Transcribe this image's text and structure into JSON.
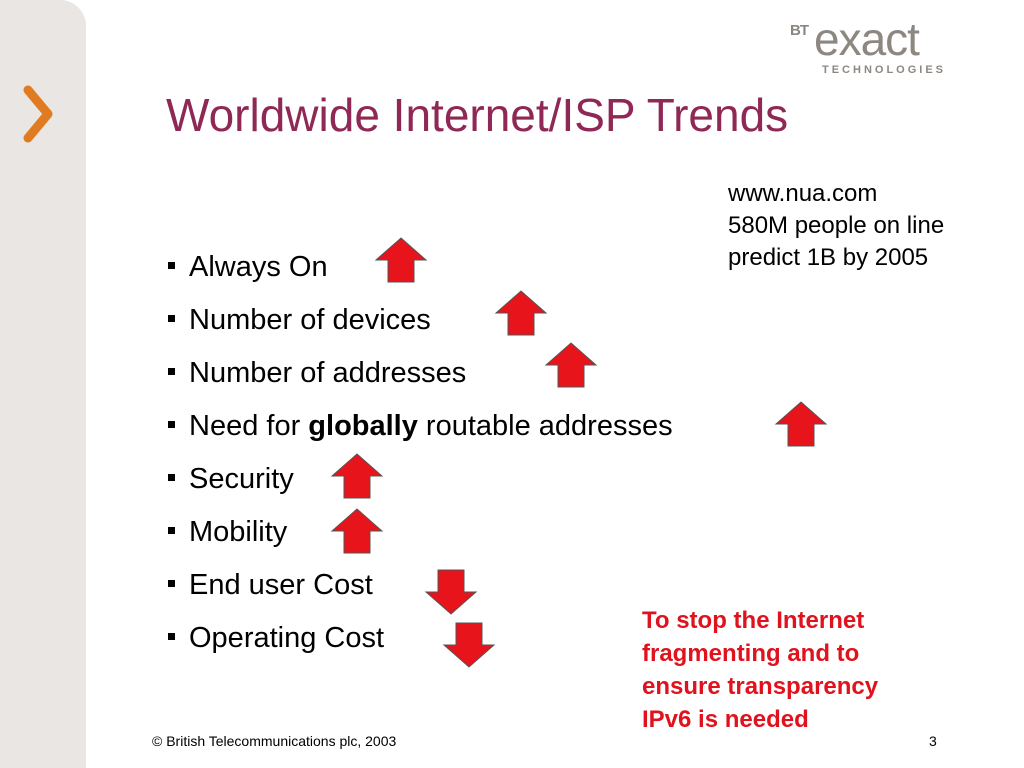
{
  "slide": {
    "title": "Worldwide Internet/ISP Trends",
    "logo": {
      "bt": "BT",
      "name": "exact",
      "sub": "TECHNOLOGIES"
    },
    "note": [
      "www.nua.com",
      "580M people on line",
      "predict 1B by 2005"
    ],
    "bullets": [
      {
        "text": "Always On",
        "trend": "up"
      },
      {
        "text": "Number of devices",
        "trend": "up"
      },
      {
        "text": "Number of addresses",
        "trend": "up"
      },
      {
        "pre": "Need for ",
        "bold": "globally",
        "post": " routable addresses",
        "trend": "up"
      },
      {
        "text": "Security",
        "trend": "up"
      },
      {
        "text": "Mobility",
        "trend": "up"
      },
      {
        "text": "End user Cost",
        "trend": "down"
      },
      {
        "text": "Operating Cost",
        "trend": "down"
      }
    ],
    "callout": [
      "To stop the Internet",
      "fragmenting and to",
      "ensure transparency",
      "IPv6 is needed"
    ],
    "footer": "© British Telecommunications plc, 2003",
    "page_number": "3",
    "icons": {
      "nav": "chevron-right-icon",
      "up": "arrow-up-icon",
      "down": "arrow-down-icon"
    },
    "colors": {
      "title": "#8f2855",
      "chevron": "#e07b21",
      "arrow": "#e8141c",
      "callout": "#e0121d",
      "sidebar": "#e9e6e3"
    }
  }
}
